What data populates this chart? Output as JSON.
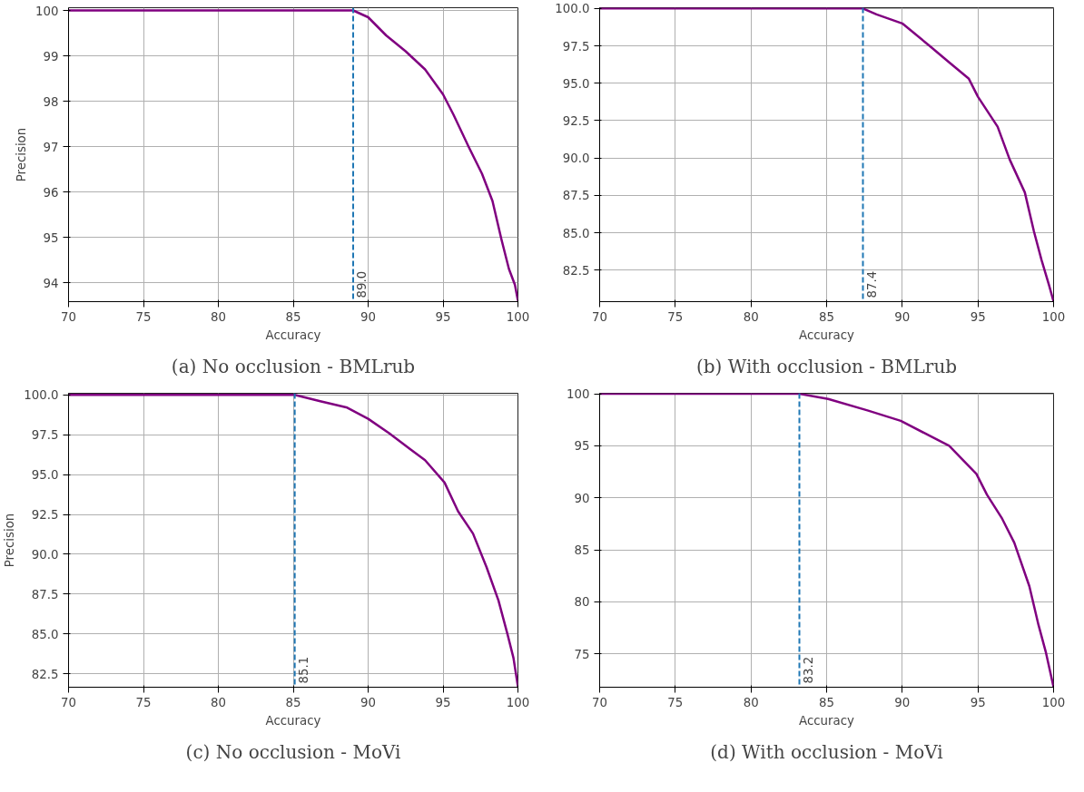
{
  "chart_data": [
    {
      "type": "line",
      "title": "(a) No occlusion - BMLrub",
      "xlabel": "Accuracy",
      "ylabel": "Precision",
      "xlim": [
        70,
        100
      ],
      "ylim": [
        93.58,
        100.06
      ],
      "xticks": [
        70,
        75,
        80,
        85,
        90,
        95,
        100
      ],
      "yticks": [
        94,
        95,
        96,
        97,
        98,
        99,
        100
      ],
      "grid": true,
      "series": [
        {
          "color": "#800080",
          "x": [
            70,
            89.0,
            90,
            91.2,
            92.5,
            93.8,
            95,
            95.7,
            96.7,
            97.6,
            98.3,
            98.9,
            99.4,
            99.8,
            100
          ],
          "values": [
            100,
            100,
            99.85,
            99.45,
            99.1,
            98.7,
            98.15,
            97.7,
            97.0,
            96.4,
            95.8,
            94.95,
            94.3,
            93.95,
            93.6
          ]
        }
      ],
      "ref_lines": [
        {
          "axis": "x",
          "value": 89.0,
          "label": "89.0",
          "color": "#1f77b4",
          "line_style": "dashed"
        }
      ]
    },
    {
      "type": "line",
      "title": "(b) With occlusion - BMLrub",
      "xlabel": "Accuracy",
      "xlim": [
        70,
        100
      ],
      "ylim": [
        80.4,
        100.05
      ],
      "xticks": [
        70,
        75,
        80,
        85,
        90,
        95,
        100
      ],
      "yticks": [
        {
          "value": 82.5,
          "label": "82.5"
        },
        {
          "value": 85,
          "label": "85.0"
        },
        {
          "value": 87.5,
          "label": "87.5"
        },
        {
          "value": 90,
          "label": "90.0"
        },
        {
          "value": 92.5,
          "label": "92.5"
        },
        {
          "value": 95,
          "label": "95.0"
        },
        {
          "value": 97.5,
          "label": "97.5"
        },
        {
          "value": 100,
          "label": "100.0"
        }
      ],
      "grid": true,
      "series": [
        {
          "color": "#800080",
          "x": [
            70,
            87.4,
            88.3,
            90,
            91.8,
            93.1,
            94.4,
            95,
            96.3,
            97.1,
            98.1,
            98.7,
            99.2,
            99.7,
            100
          ],
          "values": [
            100,
            100,
            99.6,
            99.0,
            97.5,
            96.4,
            95.3,
            94.1,
            92.1,
            89.9,
            87.7,
            85.1,
            83.2,
            81.5,
            80.4
          ]
        }
      ],
      "ref_lines": [
        {
          "axis": "x",
          "value": 87.4,
          "label": "87.4",
          "color": "#1f77b4",
          "line_style": "dashed"
        }
      ]
    },
    {
      "type": "line",
      "title": "(c) No occlusion - MoVi",
      "xlabel": "Accuracy",
      "ylabel": "Precision",
      "xlim": [
        70,
        100
      ],
      "ylim": [
        81.66,
        100.1
      ],
      "xticks": [
        70,
        75,
        80,
        85,
        90,
        95,
        100
      ],
      "yticks": [
        {
          "value": 82.5,
          "label": "82.5"
        },
        {
          "value": 85,
          "label": "85.0"
        },
        {
          "value": 87.5,
          "label": "87.5"
        },
        {
          "value": 90,
          "label": "90.0"
        },
        {
          "value": 92.5,
          "label": "92.5"
        },
        {
          "value": 95,
          "label": "95.0"
        },
        {
          "value": 97.5,
          "label": "97.5"
        },
        {
          "value": 100,
          "label": "100.0"
        }
      ],
      "grid": true,
      "series": [
        {
          "color": "#800080",
          "x": [
            70,
            85.1,
            86.8,
            88.6,
            90,
            91.4,
            92.8,
            93.8,
            95.1,
            96,
            97,
            97.9,
            98.7,
            99.3,
            99.7,
            100
          ],
          "values": [
            100,
            100,
            99.6,
            99.2,
            98.5,
            97.6,
            96.6,
            95.9,
            94.5,
            92.7,
            91.3,
            89.2,
            87.1,
            85.0,
            83.5,
            81.7
          ]
        }
      ],
      "ref_lines": [
        {
          "axis": "x",
          "value": 85.1,
          "label": "85.1",
          "color": "#1f77b4",
          "line_style": "dashed"
        }
      ]
    },
    {
      "type": "line",
      "title": "(d) With occlusion - MoVi",
      "xlabel": "Accuracy",
      "xlim": [
        70,
        100
      ],
      "ylim": [
        71.8,
        100.05
      ],
      "xticks": [
        70,
        75,
        80,
        85,
        90,
        95,
        100
      ],
      "yticks": [
        75,
        80,
        85,
        90,
        95,
        100
      ],
      "grid": true,
      "series": [
        {
          "color": "#800080",
          "x": [
            70,
            83.2,
            85.1,
            87.7,
            89.9,
            91.5,
            93.1,
            94.1,
            94.9,
            95.6,
            96.6,
            97.4,
            98.4,
            99.0,
            99.5,
            100
          ],
          "values": [
            100,
            100,
            99.5,
            98.4,
            97.4,
            96.2,
            95.0,
            93.5,
            92.3,
            90.3,
            88.0,
            85.7,
            81.5,
            77.8,
            75.1,
            71.8
          ]
        }
      ],
      "ref_lines": [
        {
          "axis": "x",
          "value": 83.2,
          "label": "83.2",
          "color": "#1f77b4",
          "line_style": "dashed"
        }
      ]
    }
  ]
}
